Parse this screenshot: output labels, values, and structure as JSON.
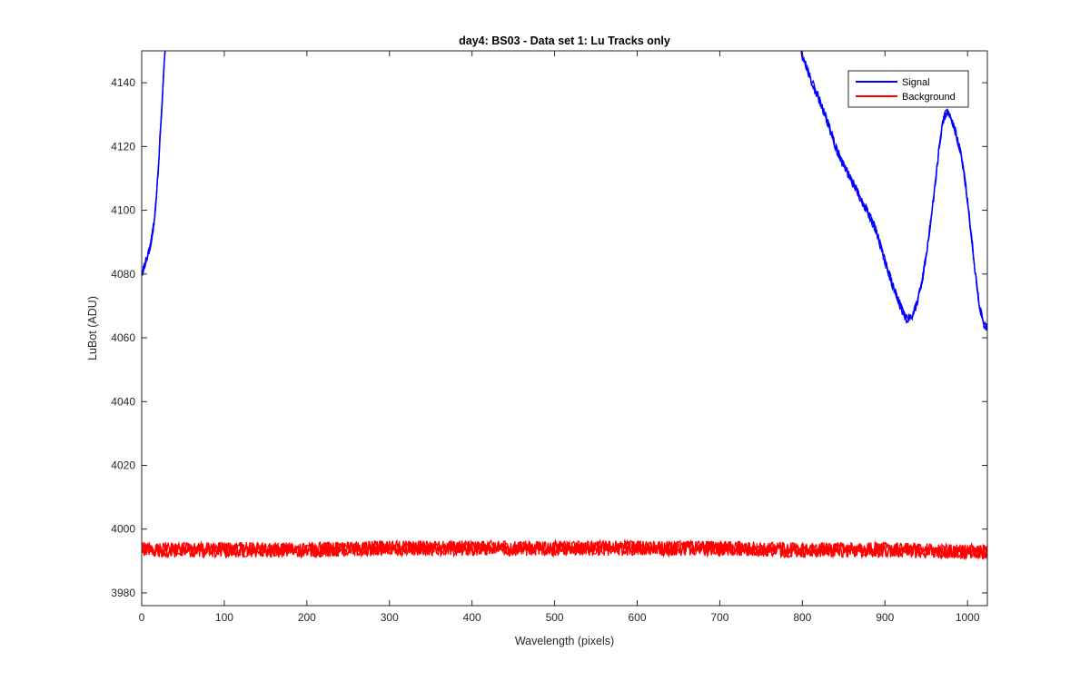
{
  "chart_data": {
    "type": "line",
    "title": "day4: BS03 - Data set 1: Lu Tracks only",
    "xlabel": "Wavelength (pixels)",
    "ylabel": "LuBot (ADU)",
    "xlim": [
      0,
      1024
    ],
    "ylim": [
      3976,
      4150
    ],
    "xticks": [
      0,
      100,
      200,
      300,
      400,
      500,
      600,
      700,
      800,
      900,
      1000
    ],
    "yticks": [
      3980,
      4000,
      4020,
      4040,
      4060,
      4080,
      4100,
      4120,
      4140
    ],
    "grid": false,
    "legend_position": "top-right",
    "series": [
      {
        "name": "Signal",
        "color": "#0000ff",
        "segments": [
          {
            "x": [
              0,
              5,
              10,
              15,
              18,
              20,
              22,
              25,
              27,
              29
            ],
            "y": [
              4080,
              4084,
              4088,
              4096,
              4105,
              4112,
              4122,
              4135,
              4145,
              4152
            ]
          },
          {
            "x": [
              798,
              800,
              805,
              810,
              820,
              830,
              840,
              850,
              860,
              870,
              880,
              890,
              900,
              910,
              920,
              925,
              930,
              935,
              940,
              945,
              950,
              955,
              960,
              965,
              970,
              975,
              980,
              985,
              990,
              995,
              1000,
              1005,
              1010,
              1015,
              1020,
              1024
            ],
            "y": [
              4152,
              4148,
              4145,
              4141,
              4135,
              4128,
              4120,
              4114,
              4109,
              4104,
              4099,
              4093,
              4084,
              4076,
              4069,
              4066,
              4066,
              4068,
              4072,
              4078,
              4086,
              4096,
              4106,
              4118,
              4128,
              4131,
              4129,
              4125,
              4120,
              4113,
              4103,
              4091,
              4079,
              4069,
              4064,
              4063
            ]
          }
        ]
      },
      {
        "name": "Background",
        "color": "#ff0000",
        "x": [
          0,
          100,
          200,
          300,
          400,
          500,
          600,
          700,
          800,
          900,
          1000,
          1024
        ],
        "y": [
          3993.5,
          3993.5,
          3993.5,
          3994,
          3994,
          3994,
          3994,
          3994,
          3993.5,
          3993.5,
          3993,
          3993
        ]
      }
    ]
  }
}
